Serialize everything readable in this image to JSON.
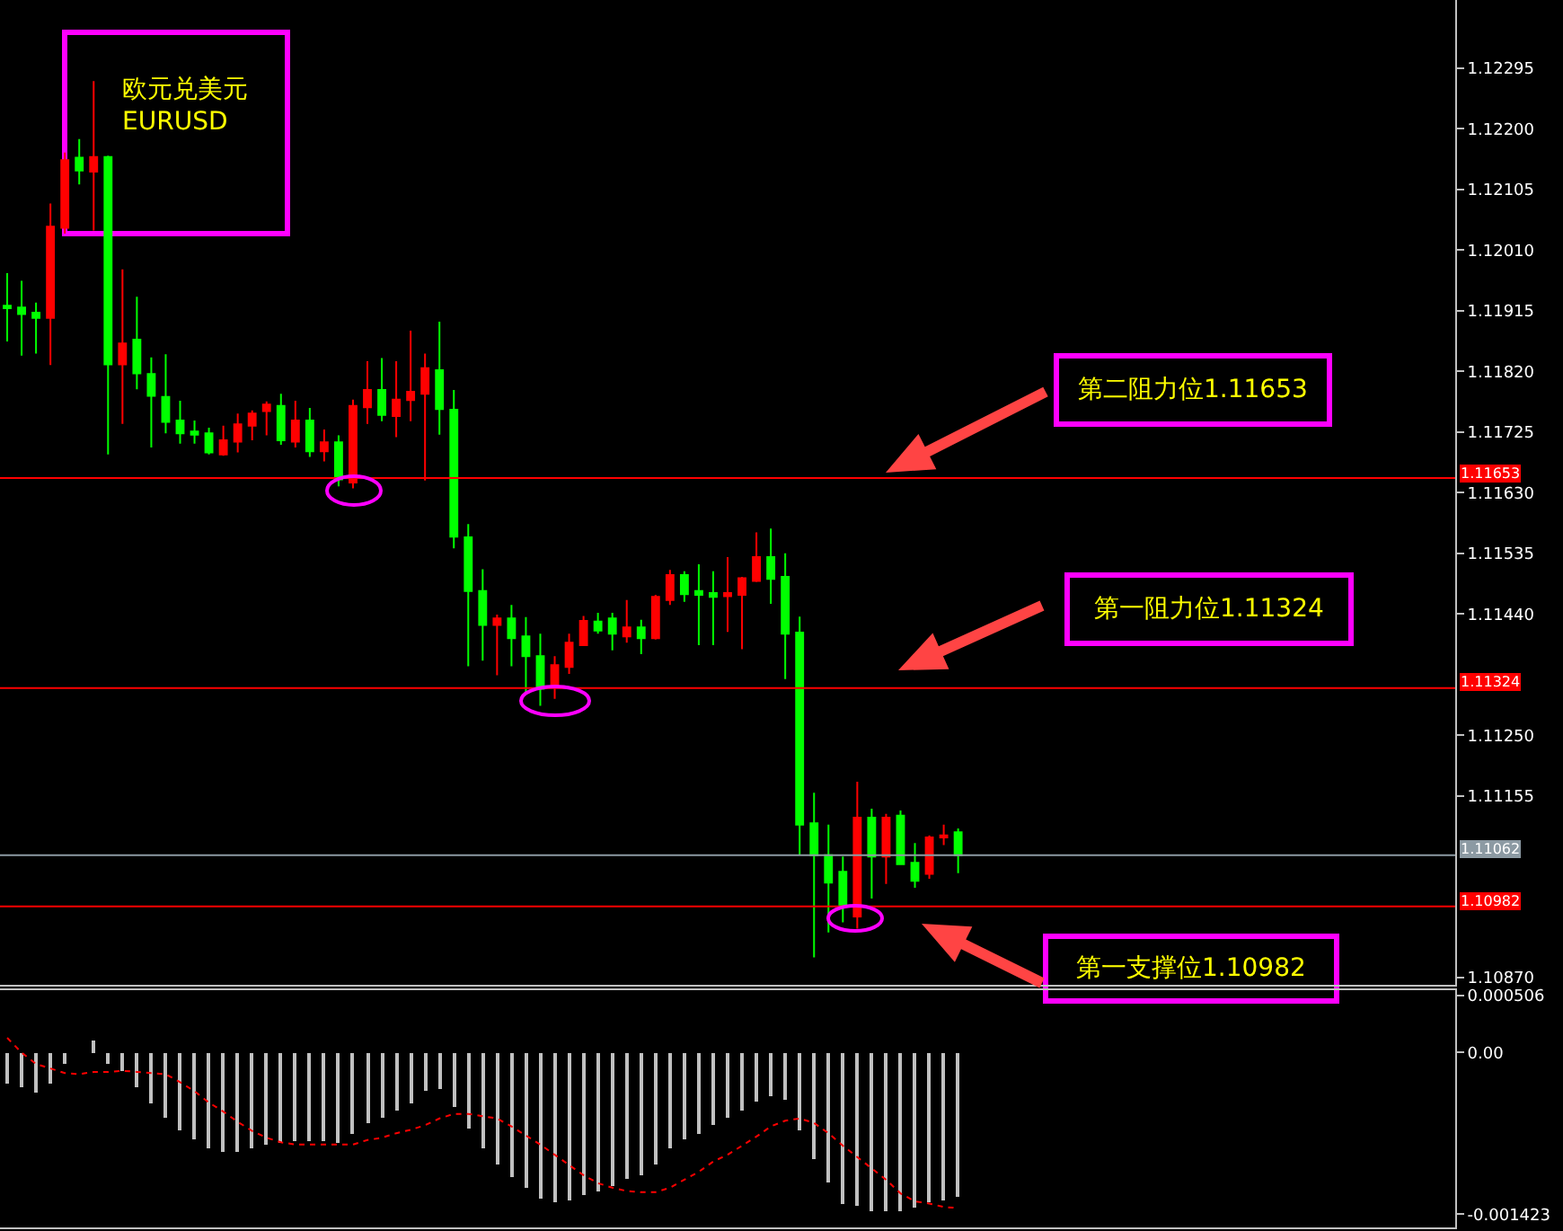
{
  "chart_data": [
    {
      "type": "candlestick",
      "categories": [
        null,
        null,
        null,
        null,
        null,
        null,
        null,
        null,
        null,
        null,
        null,
        null,
        null,
        null,
        null,
        null,
        null,
        null,
        null,
        null,
        null,
        null,
        null,
        null,
        null,
        null,
        null,
        null,
        null,
        null,
        null,
        null,
        null,
        null,
        null,
        null,
        null,
        null,
        null,
        null,
        null,
        null,
        null,
        null,
        null,
        null,
        null,
        null,
        null,
        null,
        null,
        null,
        null,
        null,
        null,
        null,
        null,
        null,
        null,
        null,
        null,
        null,
        null,
        null,
        null,
        null,
        null,
        null,
        null,
        null,
        null,
        null,
        null,
        null,
        null,
        null,
        null,
        null,
        null,
        null,
        null,
        null,
        null,
        null,
        null,
        null,
        null,
        null,
        null,
        null,
        null,
        null,
        null,
        null,
        null,
        null,
        null,
        null,
        null,
        null,
        null
      ],
      "ohlc": [
        [
          1.11923,
          1.11974,
          1.11867,
          1.11919
        ],
        [
          1.1192,
          1.11962,
          1.11845,
          1.1191
        ],
        [
          1.11912,
          1.11928,
          1.11848,
          1.11904
        ],
        [
          1.11904,
          1.12083,
          1.1183,
          1.12047
        ],
        [
          1.12045,
          1.12163,
          1.12036,
          1.12151
        ],
        [
          1.12155,
          1.12184,
          1.12113,
          1.12135
        ],
        [
          1.12133,
          1.12275,
          1.12041,
          1.12156
        ],
        [
          1.12156,
          1.12158,
          1.1169,
          1.11831
        ],
        [
          1.11831,
          1.1198,
          1.11738,
          1.11864
        ],
        [
          1.1187,
          1.11937,
          1.11792,
          1.11817
        ],
        [
          1.11816,
          1.11842,
          1.11701,
          1.11782
        ],
        [
          1.1178,
          1.11847,
          1.11723,
          1.11741
        ],
        [
          1.11743,
          1.11774,
          1.11707,
          1.11723
        ],
        [
          1.11726,
          1.11743,
          1.11707,
          1.11721
        ],
        [
          1.11723,
          1.11732,
          1.1169,
          1.11693
        ],
        [
          1.1169,
          1.11735,
          1.11688,
          1.11712
        ],
        [
          1.1171,
          1.11754,
          1.11693,
          1.11737
        ],
        [
          1.11735,
          1.11759,
          1.11712,
          1.11754
        ],
        [
          1.11758,
          1.11773,
          1.1172,
          1.11768
        ],
        [
          1.11766,
          1.11785,
          1.11705,
          1.11712
        ],
        [
          1.1171,
          1.11774,
          1.11701,
          1.11743
        ],
        [
          1.11743,
          1.11763,
          1.11686,
          1.11695
        ],
        [
          1.11695,
          1.11729,
          1.11679,
          1.11709
        ],
        [
          1.11709,
          1.1172,
          1.1164,
          1.11651
        ],
        [
          1.11646,
          1.11776,
          1.11637,
          1.11766
        ],
        [
          1.11764,
          1.11836,
          1.11738,
          1.11791
        ],
        [
          1.11791,
          1.11841,
          1.11742,
          1.11752
        ],
        [
          1.1175,
          1.11836,
          1.11717,
          1.11776
        ],
        [
          1.11775,
          1.11884,
          1.11742,
          1.11788
        ],
        [
          1.11785,
          1.11848,
          1.11649,
          1.11825
        ],
        [
          1.11822,
          1.11898,
          1.11721,
          1.11761
        ],
        [
          1.1176,
          1.11791,
          1.11543,
          1.11561
        ],
        [
          1.1156,
          1.11581,
          1.11358,
          1.11476
        ],
        [
          1.11476,
          1.1151,
          1.11367,
          1.11423
        ],
        [
          1.11423,
          1.11439,
          1.11344,
          1.11433
        ],
        [
          1.11433,
          1.11454,
          1.11358,
          1.11402
        ],
        [
          1.11405,
          1.11435,
          1.11318,
          1.11374
        ],
        [
          1.11374,
          1.11409,
          1.11296,
          1.11323
        ],
        [
          1.11327,
          1.11374,
          1.11307,
          1.1136
        ],
        [
          1.11357,
          1.11409,
          1.11346,
          1.11395
        ],
        [
          1.11391,
          1.11437,
          1.11391,
          1.11429
        ],
        [
          1.11428,
          1.11442,
          1.11409,
          1.11414
        ],
        [
          1.11433,
          1.11442,
          1.11383,
          1.11409
        ],
        [
          1.11405,
          1.11462,
          1.11395,
          1.11419
        ],
        [
          1.11419,
          1.11431,
          1.11377,
          1.11402
        ],
        [
          1.11402,
          1.1147,
          1.114,
          1.11467
        ],
        [
          1.11462,
          1.11509,
          1.11454,
          1.11501
        ],
        [
          1.11501,
          1.11507,
          1.11459,
          1.11471
        ],
        [
          1.11476,
          1.11518,
          1.11391,
          1.1147
        ],
        [
          1.11473,
          1.11507,
          1.11391,
          1.11467
        ],
        [
          1.11468,
          1.11529,
          1.11412,
          1.11473
        ],
        [
          1.1147,
          1.11498,
          1.11385,
          1.11496
        ],
        [
          1.11492,
          1.11568,
          1.1149,
          1.11529
        ],
        [
          1.11529,
          1.11574,
          1.11456,
          1.11495
        ],
        [
          1.11498,
          1.11535,
          1.11338,
          1.11409
        ],
        [
          1.11411,
          1.11436,
          1.11062,
          1.1111
        ],
        [
          1.11112,
          1.1116,
          1.10902,
          1.11062
        ],
        [
          1.11062,
          1.1111,
          1.10941,
          1.11019
        ],
        [
          1.11036,
          1.1106,
          1.10957,
          1.10983
        ],
        [
          1.10966,
          1.11177,
          1.10947,
          1.11121
        ],
        [
          1.11121,
          1.11135,
          1.10994,
          1.1106
        ],
        [
          1.1106,
          1.11127,
          1.11017,
          1.11121
        ],
        [
          1.11124,
          1.11132,
          1.11048,
          1.11048
        ],
        [
          1.1105,
          1.11081,
          1.11011,
          1.11022
        ],
        [
          1.11033,
          1.11093,
          1.11025,
          1.1109
        ],
        [
          1.1109,
          1.1111,
          1.11078,
          1.11093
        ],
        [
          1.11098,
          1.11104,
          1.11034,
          1.11062
        ],
        null,
        null,
        null,
        null,
        null,
        null,
        null,
        null,
        null,
        null,
        null,
        null,
        null,
        null,
        null,
        null,
        null,
        null,
        null,
        null,
        null,
        null,
        null,
        null,
        null,
        null,
        null,
        null,
        null,
        null,
        null,
        null,
        null,
        null
      ],
      "colors": [
        "#00ff00",
        "#00ff00",
        "#00ff00",
        "#ff0000",
        "#ff0000",
        "#00ff00",
        "#ff0000",
        "#00ff00",
        "#ff0000",
        "#00ff00",
        "#00ff00",
        "#00ff00",
        "#00ff00",
        "#00ff00",
        "#00ff00",
        "#ff0000",
        "#ff0000",
        "#ff0000",
        "#ff0000",
        "#00ff00",
        "#ff0000",
        "#00ff00",
        "#ff0000",
        "#00ff00",
        "#ff0000",
        "#ff0000",
        "#00ff00",
        "#ff0000",
        "#ff0000",
        "#ff0000",
        "#00ff00",
        "#00ff00",
        "#00ff00",
        "#00ff00",
        "#ff0000",
        "#00ff00",
        "#00ff00",
        "#00ff00",
        "#ff0000",
        "#ff0000",
        "#ff0000",
        "#00ff00",
        "#00ff00",
        "#ff0000",
        "#00ff00",
        "#ff0000",
        "#ff0000",
        "#00ff00",
        "#00ff00",
        "#00ff00",
        "#ff0000",
        "#ff0000",
        "#ff0000",
        "#00ff00",
        "#00ff00",
        "#00ff00",
        "#00ff00",
        "#00ff00",
        "#00ff00",
        "#ff0000",
        "#00ff00",
        "#ff0000",
        "#00ff00",
        "#00ff00",
        "#ff0000",
        "#ff0000",
        "#00ff00",
        null,
        null,
        null,
        null,
        null,
        null,
        null,
        null,
        null,
        null,
        null,
        null,
        null,
        null,
        null,
        null,
        null,
        null,
        null,
        null,
        null,
        null,
        null,
        null,
        null,
        null,
        null,
        null,
        null,
        null,
        null,
        null,
        null,
        null
      ],
      "ylim": [
        1.10859,
        1.12402
      ],
      "yticks": [
        1.12295,
        {
          "value": 1.122,
          "label": "1.12200"
        },
        1.12105,
        {
          "value": 1.1201,
          "label": "1.12010"
        },
        1.11915,
        {
          "value": 1.1182,
          "label": "1.11820"
        },
        1.11725,
        {
          "value": 1.1163,
          "label": "1.11630"
        },
        1.11535,
        {
          "value": 1.1144,
          "label": "1.11440"
        },
        {
          "value": 1.1125,
          "label": "1.11250"
        },
        1.11155,
        {
          "value": 1.1087,
          "label": "1.10870"
        }
      ],
      "tick_labels": "y",
      "ref_lines": [
        {
          "axis": "y",
          "value": 1.11653,
          "label": "1.11653",
          "color": "#ff0000"
        },
        {
          "axis": "y",
          "value": 1.11324,
          "label": "1.11324",
          "color": "#ff0000"
        },
        {
          "axis": "y",
          "value": 1.11062,
          "label": "1.11062",
          "color": "#8c9aa3"
        },
        {
          "axis": "y",
          "value": 1.10982,
          "label": "1.10982",
          "color": "#ff0000"
        }
      ],
      "annotations": [
        "欧元兑美元\nEURUSD",
        "第二阻力位1.11653",
        "第一阻力位1.11324",
        "第一支撑位1.10982"
      ]
    },
    {
      "type": "bar",
      "categories": [
        null,
        null,
        null,
        null,
        null,
        null,
        null,
        null,
        null,
        null,
        null,
        null,
        null,
        null,
        null,
        null,
        null,
        null,
        null,
        null,
        null,
        null,
        null,
        null,
        null,
        null,
        null,
        null,
        null,
        null,
        null,
        null,
        null,
        null,
        null,
        null,
        null,
        null,
        null,
        null,
        null,
        null,
        null,
        null,
        null,
        null,
        null,
        null,
        null,
        null,
        null,
        null,
        null,
        null,
        null,
        null,
        null,
        null,
        null,
        null,
        null,
        null,
        null,
        null,
        null,
        null,
        null,
        null,
        null,
        null,
        null,
        null,
        null,
        null,
        null,
        null,
        null,
        null,
        null,
        null,
        null,
        null,
        null,
        null,
        null,
        null,
        null,
        null,
        null,
        null,
        null,
        null,
        null,
        null,
        null,
        null,
        null,
        null,
        null,
        null,
        null
      ],
      "series": [
        {
          "type": "bar",
          "color": "#c0c0c0",
          "values": [
            -0.00028,
            -0.00031,
            -0.00036,
            -0.00027,
            -0.0001,
            0,
            0.00011,
            -0.0001,
            -0.00016,
            -0.00031,
            -0.00044,
            -0.00057,
            -0.00068,
            -0.00077,
            -0.00084,
            -0.00088,
            -0.00088,
            -0.00084,
            -0.00081,
            -0.00079,
            -0.00078,
            -0.00078,
            -0.00078,
            -0.00079,
            -0.00072,
            -0.00062,
            -0.00057,
            -0.00051,
            -0.00044,
            -0.00034,
            -0.00032,
            -0.00048,
            -0.00067,
            -0.00084,
            -0.00098,
            -0.00109,
            -0.00119,
            -0.00129,
            -0.00132,
            -0.00131,
            -0.00126,
            -0.00122,
            -0.00118,
            -0.00112,
            -0.00108,
            -0.00098,
            -0.00085,
            -0.00077,
            -0.00071,
            -0.00064,
            -0.00058,
            -0.00051,
            -0.00043,
            -0.00038,
            -0.00041,
            -0.00068,
            -0.00094,
            -0.00115,
            -0.00133,
            -0.00135,
            -0.00139,
            -0.00139,
            -0.00139,
            -0.00136,
            -0.00132,
            -0.00131,
            -0.00127,
            null,
            null,
            null,
            null,
            null,
            null,
            null,
            null,
            null,
            null,
            null,
            null,
            null,
            null,
            null,
            null,
            null,
            null,
            null,
            null,
            null,
            null,
            null,
            null,
            null,
            null,
            null,
            null,
            null,
            null,
            null,
            null,
            null,
            null
          ]
        },
        {
          "type": "line",
          "color": "#ff0000",
          "line_style": "dotted",
          "values": [
            0.00013,
            0,
            -0.0001,
            -0.00014,
            -0.00018,
            -0.00019,
            -0.00017,
            -0.00017,
            -0.00016,
            -0.00017,
            -0.00018,
            -0.00019,
            -0.00026,
            -0.00034,
            -0.00044,
            -0.00052,
            -0.00061,
            -0.00069,
            -0.00075,
            -0.00079,
            -0.00081,
            -0.00081,
            -0.00081,
            -0.00081,
            -0.00081,
            -0.00077,
            -0.00075,
            -0.00071,
            -0.00068,
            -0.00064,
            -0.00058,
            -0.00054,
            -0.00054,
            -0.00056,
            -0.00058,
            -0.00065,
            -0.00073,
            -0.00081,
            -0.0009,
            -0.00099,
            -0.00108,
            -0.00115,
            -0.00119,
            -0.00122,
            -0.00123,
            -0.00123,
            -0.00119,
            -0.00112,
            -0.00105,
            -0.00096,
            -0.0009,
            -0.00082,
            -0.00074,
            -0.00065,
            -0.0006,
            -0.00058,
            -0.00062,
            -0.00071,
            -0.00082,
            -0.00092,
            -0.00102,
            -0.00112,
            -0.00124,
            -0.00131,
            -0.00133,
            -0.00136,
            -0.00137,
            null,
            null,
            null,
            null,
            null,
            null,
            null,
            null,
            null,
            null,
            null,
            null,
            null,
            null,
            null,
            null,
            null,
            null,
            null,
            null,
            null,
            null,
            null,
            null,
            null,
            null,
            null,
            null,
            null,
            null,
            null,
            null,
            null,
            null
          ]
        }
      ],
      "ylim": [
        -0.00154,
        0.00055
      ],
      "yticks": [
        0.000506,
        {
          "value": 0,
          "label": "0.00"
        },
        -0.001423
      ],
      "tick_labels": "y"
    }
  ]
}
